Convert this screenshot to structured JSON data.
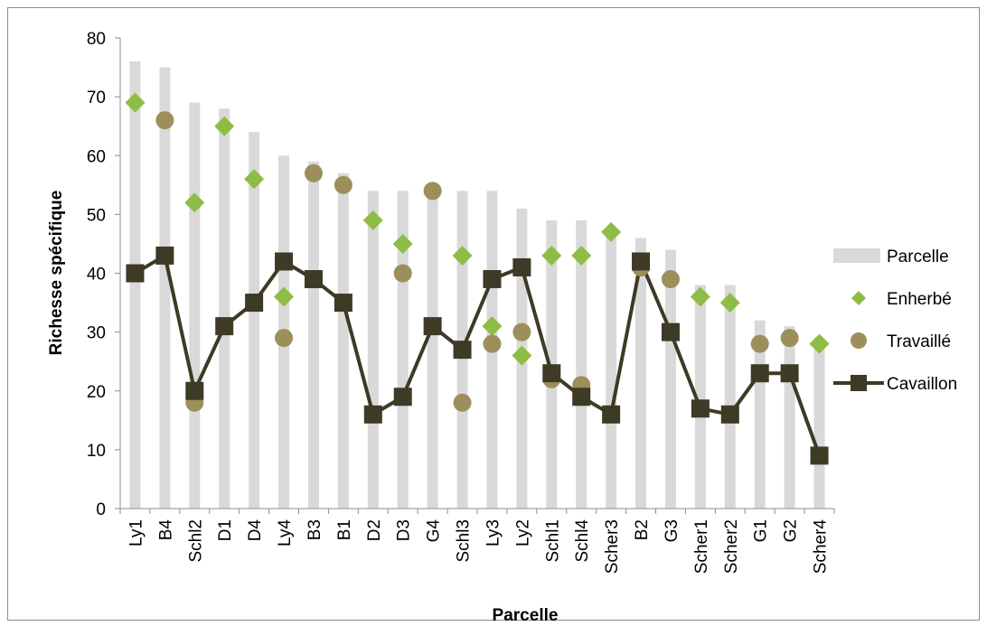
{
  "chart_data": {
    "type": "bar",
    "xlabel": "Parcelle",
    "ylabel": "Richesse spécifique",
    "ylim": [
      0,
      80
    ],
    "yticks": [
      0,
      10,
      20,
      30,
      40,
      50,
      60,
      70,
      80
    ],
    "categories": [
      "Ly1",
      "B4",
      "Schl2",
      "D1",
      "D4",
      "Ly4",
      "B3",
      "B1",
      "D2",
      "D3",
      "G4",
      "Schl3",
      "Ly3",
      "Ly2",
      "Schl1",
      "Schl4",
      "Scher3",
      "B2",
      "G3",
      "Scher1",
      "Scher2",
      "G1",
      "G2",
      "Scher4"
    ],
    "series": [
      {
        "name": "Parcelle",
        "kind": "bar",
        "color": "#d9d9d9",
        "values": [
          76,
          75,
          69,
          68,
          64,
          60,
          59,
          57,
          54,
          54,
          54,
          54,
          54,
          51,
          49,
          49,
          47,
          46,
          44,
          38,
          38,
          32,
          31,
          29
        ]
      },
      {
        "name": "Enherbé",
        "kind": "diamond",
        "color": "#8fbc45",
        "values": [
          69,
          null,
          52,
          65,
          56,
          36,
          null,
          null,
          49,
          45,
          null,
          43,
          31,
          26,
          43,
          43,
          47,
          null,
          null,
          36,
          35,
          null,
          null,
          28
        ]
      },
      {
        "name": "Travaillé",
        "kind": "circle",
        "color": "#9c8f5c",
        "values": [
          null,
          66,
          18,
          null,
          null,
          29,
          57,
          55,
          null,
          40,
          54,
          18,
          28,
          30,
          22,
          21,
          null,
          41,
          39,
          null,
          null,
          28,
          29,
          null
        ]
      },
      {
        "name": "Cavaillon",
        "kind": "line",
        "color": "#3d3a26",
        "values": [
          40,
          43,
          20,
          31,
          35,
          42,
          39,
          35,
          16,
          19,
          31,
          27,
          39,
          41,
          23,
          19,
          16,
          42,
          30,
          17,
          16,
          23,
          23,
          9
        ]
      }
    ],
    "legend_position": "right"
  }
}
